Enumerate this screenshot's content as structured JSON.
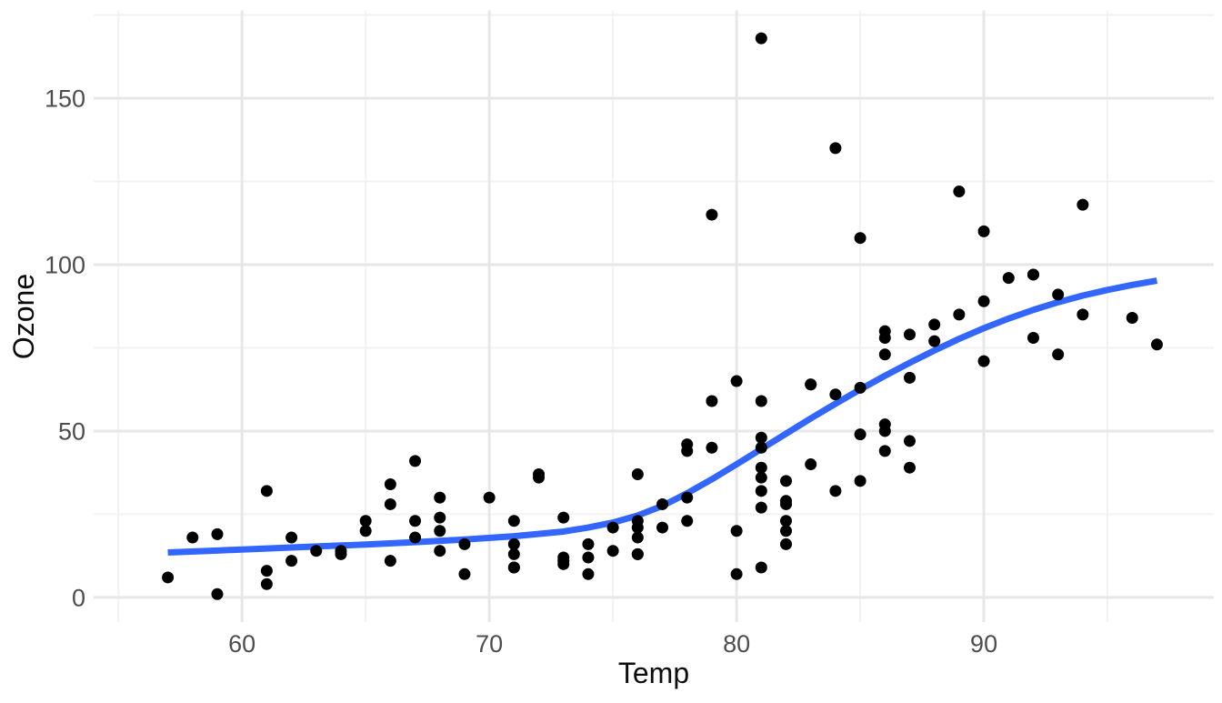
{
  "chart_data": {
    "type": "scatter",
    "title": "",
    "xlabel": "Temp",
    "ylabel": "Ozone",
    "x_ticks": [
      "60",
      "70",
      "80",
      "90"
    ],
    "x_tick_values": [
      60,
      70,
      80,
      90
    ],
    "x_minor_values": [
      55,
      65,
      75,
      85,
      95
    ],
    "y_ticks": [
      "0",
      "50",
      "100",
      "150"
    ],
    "y_tick_values": [
      0,
      50,
      100,
      150
    ],
    "y_minor_values": [
      25,
      75,
      125,
      175
    ],
    "xlim": [
      54.0,
      99.3
    ],
    "ylim": [
      -7.4,
      176.4
    ],
    "grid": "major+minor",
    "legend": "none",
    "colors": {
      "point": "#000000",
      "smooth_line": "#3366FF",
      "grid_major": "#e7e7e7",
      "grid_minor": "#f2f2f2",
      "tick_text": "#4d4d4d",
      "axis_title_text": "#0d0d0d",
      "background": "#ffffff"
    },
    "point_radius": 6.5,
    "smooth_line_width": 7,
    "points": [
      [
        57,
        6
      ],
      [
        58,
        18
      ],
      [
        59,
        19
      ],
      [
        59,
        1
      ],
      [
        61,
        8
      ],
      [
        61,
        4
      ],
      [
        61,
        32
      ],
      [
        62,
        18
      ],
      [
        62,
        11
      ],
      [
        63,
        14
      ],
      [
        64,
        14
      ],
      [
        64,
        13
      ],
      [
        65,
        23
      ],
      [
        65,
        20
      ],
      [
        66,
        34
      ],
      [
        66,
        28
      ],
      [
        66,
        11
      ],
      [
        67,
        41
      ],
      [
        67,
        23
      ],
      [
        67,
        18
      ],
      [
        68,
        30
      ],
      [
        68,
        24
      ],
      [
        68,
        20
      ],
      [
        68,
        14
      ],
      [
        69,
        16
      ],
      [
        69,
        7
      ],
      [
        70,
        30
      ],
      [
        71,
        23
      ],
      [
        71,
        16
      ],
      [
        71,
        13
      ],
      [
        71,
        9
      ],
      [
        71,
        9
      ],
      [
        72,
        37
      ],
      [
        72,
        36
      ],
      [
        73,
        24
      ],
      [
        73,
        12
      ],
      [
        73,
        11
      ],
      [
        73,
        10
      ],
      [
        74,
        16
      ],
      [
        74,
        12
      ],
      [
        74,
        7
      ],
      [
        75,
        21
      ],
      [
        75,
        14
      ],
      [
        76,
        37
      ],
      [
        76,
        23
      ],
      [
        76,
        21
      ],
      [
        76,
        18
      ],
      [
        76,
        13
      ],
      [
        76,
        13
      ],
      [
        77,
        28
      ],
      [
        77,
        21
      ],
      [
        78,
        46
      ],
      [
        78,
        44
      ],
      [
        78,
        30
      ],
      [
        78,
        23
      ],
      [
        79,
        115
      ],
      [
        79,
        59
      ],
      [
        79,
        45
      ],
      [
        80,
        65
      ],
      [
        80,
        20
      ],
      [
        80,
        7
      ],
      [
        81,
        168
      ],
      [
        81,
        59
      ],
      [
        81,
        48
      ],
      [
        81,
        45
      ],
      [
        81,
        39
      ],
      [
        81,
        36
      ],
      [
        81,
        32
      ],
      [
        81,
        27
      ],
      [
        81,
        9
      ],
      [
        82,
        35
      ],
      [
        82,
        29
      ],
      [
        82,
        28
      ],
      [
        82,
        23
      ],
      [
        82,
        20
      ],
      [
        82,
        16
      ],
      [
        83,
        64
      ],
      [
        83,
        64
      ],
      [
        83,
        40
      ],
      [
        84,
        135
      ],
      [
        84,
        61
      ],
      [
        84,
        32
      ],
      [
        85,
        108
      ],
      [
        85,
        63
      ],
      [
        85,
        49
      ],
      [
        85,
        35
      ],
      [
        86,
        80
      ],
      [
        86,
        78
      ],
      [
        86,
        73
      ],
      [
        86,
        52
      ],
      [
        86,
        50
      ],
      [
        86,
        44
      ],
      [
        87,
        79
      ],
      [
        87,
        66
      ],
      [
        87,
        47
      ],
      [
        87,
        39
      ],
      [
        88,
        82
      ],
      [
        88,
        77
      ],
      [
        89,
        122
      ],
      [
        89,
        85
      ],
      [
        90,
        110
      ],
      [
        90,
        89
      ],
      [
        90,
        71
      ],
      [
        91,
        96
      ],
      [
        92,
        97
      ],
      [
        92,
        97
      ],
      [
        92,
        78
      ],
      [
        93,
        91
      ],
      [
        93,
        73
      ],
      [
        94,
        118
      ],
      [
        94,
        85
      ],
      [
        96,
        84
      ],
      [
        97,
        76
      ]
    ],
    "smooth_line": {
      "method": "loess",
      "points": [
        [
          57,
          13.5
        ],
        [
          59,
          14.1
        ],
        [
          61,
          14.7
        ],
        [
          63,
          15.3
        ],
        [
          65,
          15.9
        ],
        [
          67,
          16.6
        ],
        [
          69,
          17.4
        ],
        [
          71,
          18.4
        ],
        [
          73,
          19.8
        ],
        [
          74,
          21.0
        ],
        [
          75,
          22.5
        ],
        [
          76,
          24.6
        ],
        [
          77,
          27.5
        ],
        [
          78,
          31.3
        ],
        [
          79,
          35.5
        ],
        [
          80,
          40.0
        ],
        [
          81,
          44.6
        ],
        [
          82,
          49.2
        ],
        [
          83,
          53.8
        ],
        [
          84,
          58.2
        ],
        [
          85,
          62.5
        ],
        [
          86,
          66.6
        ],
        [
          87,
          70.5
        ],
        [
          88,
          74.2
        ],
        [
          89,
          77.7
        ],
        [
          90,
          80.9
        ],
        [
          91,
          83.8
        ],
        [
          92,
          86.4
        ],
        [
          93,
          88.7
        ],
        [
          94,
          90.7
        ],
        [
          95,
          92.4
        ],
        [
          96,
          93.9
        ],
        [
          97,
          95.2
        ]
      ]
    }
  }
}
